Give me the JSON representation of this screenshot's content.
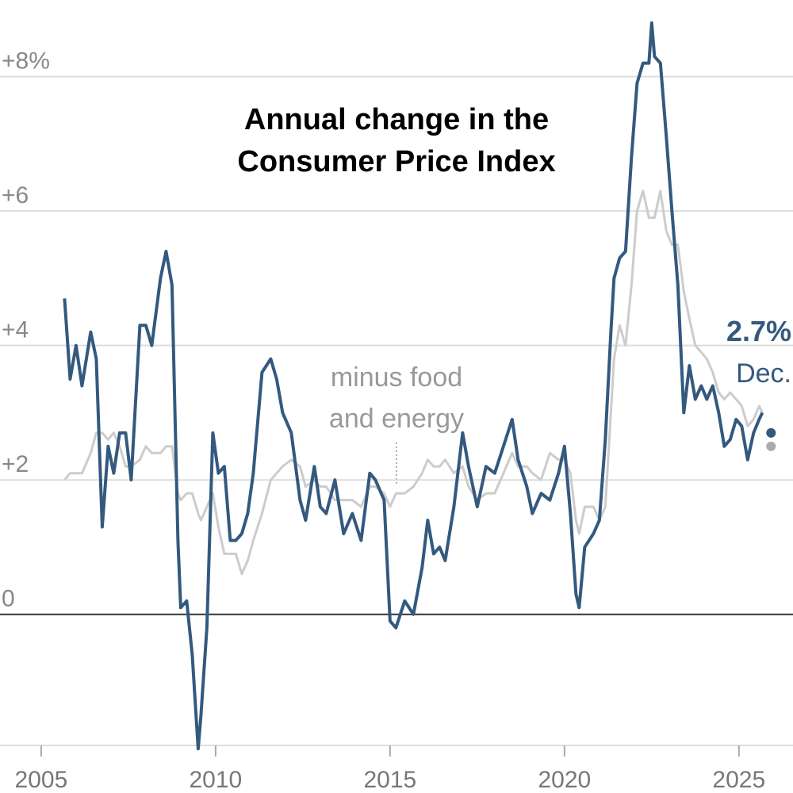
{
  "chart_data": {
    "type": "line",
    "title": "Annual change in the Consumer Price Index",
    "annotations": [
      "minus food and energy",
      "2.7%",
      "Dec."
    ],
    "x": [
      2005.67,
      2005.83,
      2006.0,
      2006.17,
      2006.42,
      2006.58,
      2006.75,
      2006.92,
      2007.08,
      2007.25,
      2007.42,
      2007.58,
      2007.83,
      2008.0,
      2008.17,
      2008.42,
      2008.58,
      2008.75,
      2008.92,
      2009.0,
      2009.17,
      2009.33,
      2009.5,
      2009.58,
      2009.75,
      2009.92,
      2010.08,
      2010.25,
      2010.42,
      2010.58,
      2010.75,
      2010.92,
      2011.08,
      2011.33,
      2011.58,
      2011.75,
      2011.92,
      2012.17,
      2012.42,
      2012.58,
      2012.83,
      2013.0,
      2013.17,
      2013.42,
      2013.67,
      2013.92,
      2014.17,
      2014.42,
      2014.58,
      2014.83,
      2015.0,
      2015.17,
      2015.42,
      2015.67,
      2015.92,
      2016.08,
      2016.25,
      2016.42,
      2016.58,
      2016.83,
      2017.08,
      2017.25,
      2017.5,
      2017.75,
      2018.0,
      2018.25,
      2018.5,
      2018.67,
      2018.92,
      2019.08,
      2019.33,
      2019.58,
      2019.83,
      2020.0,
      2020.17,
      2020.33,
      2020.42,
      2020.58,
      2020.83,
      2021.0,
      2021.17,
      2021.33,
      2021.42,
      2021.58,
      2021.75,
      2021.92,
      2022.08,
      2022.25,
      2022.42,
      2022.5,
      2022.58,
      2022.75,
      2022.92,
      2023.08,
      2023.25,
      2023.42,
      2023.58,
      2023.75,
      2023.92,
      2024.08,
      2024.25,
      2024.42,
      2024.58,
      2024.75,
      2024.92,
      2025.08,
      2025.25,
      2025.42,
      2025.58,
      2025.67,
      2025.83,
      2025.92
    ],
    "series": [
      {
        "color": "#cccccc",
        "values": [
          2.0,
          2.1,
          2.1,
          2.1,
          2.4,
          2.7,
          2.7,
          2.6,
          2.7,
          2.5,
          2.2,
          2.2,
          2.3,
          2.5,
          2.4,
          2.4,
          2.5,
          2.5,
          1.8,
          1.7,
          1.8,
          1.8,
          1.5,
          1.4,
          1.6,
          1.8,
          1.3,
          0.9,
          0.9,
          0.9,
          0.6,
          0.8,
          1.1,
          1.5,
          2.0,
          2.1,
          2.2,
          2.3,
          2.2,
          1.9,
          2.0,
          1.9,
          1.9,
          1.7,
          1.7,
          1.7,
          1.6,
          1.9,
          1.9,
          1.8,
          1.6,
          1.8,
          1.8,
          1.9,
          2.1,
          2.3,
          2.2,
          2.2,
          2.3,
          2.1,
          2.2,
          1.9,
          1.7,
          1.8,
          1.8,
          2.1,
          2.4,
          2.2,
          2.2,
          2.1,
          2.0,
          2.4,
          2.3,
          2.3,
          2.1,
          1.4,
          1.2,
          1.6,
          1.6,
          1.4,
          1.6,
          3.0,
          3.8,
          4.3,
          4.0,
          4.9,
          6.0,
          6.3,
          5.9,
          5.9,
          5.9,
          6.3,
          5.7,
          5.5,
          5.5,
          4.8,
          4.4,
          4.0,
          3.9,
          3.8,
          3.6,
          3.3,
          3.2,
          3.3,
          3.2,
          3.1,
          2.8,
          2.9,
          3.1,
          3.0,
          null,
          2.5
        ]
      },
      {
        "color": "#34597f",
        "values": [
          4.7,
          3.5,
          4.0,
          3.4,
          4.2,
          3.8,
          1.3,
          2.5,
          2.1,
          2.7,
          2.7,
          2.0,
          4.3,
          4.3,
          4.0,
          5.0,
          5.4,
          4.9,
          1.1,
          0.1,
          0.2,
          -0.6,
          -2.0,
          -1.5,
          -0.2,
          2.7,
          2.1,
          2.2,
          1.1,
          1.1,
          1.2,
          1.5,
          2.1,
          3.6,
          3.8,
          3.5,
          3.0,
          2.7,
          1.7,
          1.4,
          2.2,
          1.6,
          1.5,
          2.0,
          1.2,
          1.5,
          1.1,
          2.1,
          2.0,
          1.7,
          -0.1,
          -0.2,
          0.2,
          0.0,
          0.7,
          1.4,
          0.9,
          1.0,
          0.8,
          1.6,
          2.7,
          2.2,
          1.6,
          2.2,
          2.1,
          2.5,
          2.9,
          2.3,
          1.9,
          1.5,
          1.8,
          1.7,
          2.1,
          2.5,
          1.5,
          0.3,
          0.1,
          1.0,
          1.2,
          1.4,
          2.6,
          4.2,
          5.0,
          5.3,
          5.4,
          6.8,
          7.9,
          8.2,
          8.2,
          8.8,
          8.3,
          8.2,
          7.1,
          6.0,
          4.9,
          3.0,
          3.7,
          3.2,
          3.4,
          3.2,
          3.4,
          3.0,
          2.5,
          2.6,
          2.9,
          2.8,
          2.3,
          2.7,
          2.9,
          3.0,
          null,
          2.7
        ]
      }
    ],
    "xlim": [
      2003.82,
      2026.55
    ],
    "ylim": [
      -1.95,
      9.14
    ],
    "xticks": [
      2005,
      2010,
      2015,
      2020,
      2025
    ],
    "yticks": [
      {
        "value": 0,
        "label": "0"
      },
      {
        "value": 2,
        "label": "+2"
      },
      {
        "value": 4,
        "label": "+4"
      },
      {
        "value": 6,
        "label": "+6"
      },
      {
        "value": 8,
        "label": "+8%"
      }
    ],
    "grid": true
  }
}
